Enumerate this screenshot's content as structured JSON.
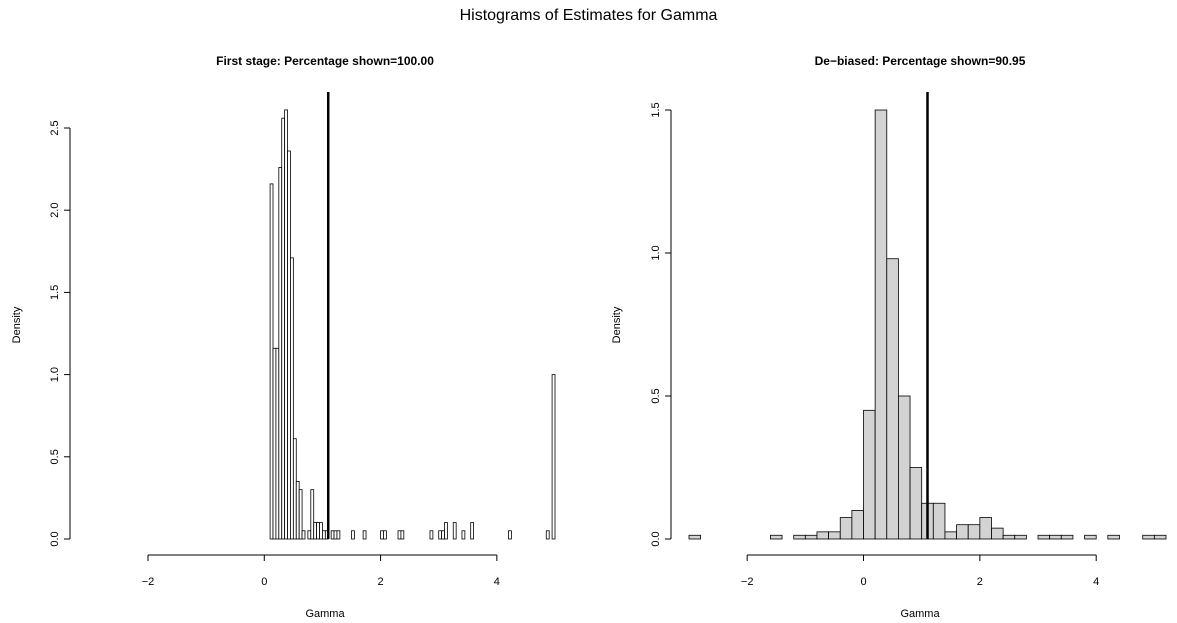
{
  "title": "Histograms of Estimates for Gamma",
  "colors": {
    "bar_left": "#ffffff",
    "bar_right": "#d3d3d3",
    "stroke": "#000000"
  },
  "chart_data": [
    {
      "type": "bar",
      "title": "First stage: Percentage shown=100.00",
      "xlabel": "Gamma",
      "ylabel": "Density",
      "xlim": [
        -2,
        5
      ],
      "ylim": [
        0,
        2.5
      ],
      "xticks": [
        -2,
        0,
        2,
        4
      ],
      "yticks": [
        0.0,
        0.5,
        1.0,
        1.5,
        2.0,
        2.5
      ],
      "vline": 1.1,
      "bin_width": 0.05,
      "bins": [
        {
          "x0": 0.1,
          "density": 2.16
        },
        {
          "x0": 0.15,
          "density": 1.16
        },
        {
          "x0": 0.2,
          "density": 1.16
        },
        {
          "x0": 0.25,
          "density": 2.26
        },
        {
          "x0": 0.3,
          "density": 2.56
        },
        {
          "x0": 0.35,
          "density": 2.61
        },
        {
          "x0": 0.4,
          "density": 2.36
        },
        {
          "x0": 0.45,
          "density": 1.71
        },
        {
          "x0": 0.5,
          "density": 0.61
        },
        {
          "x0": 0.55,
          "density": 0.35
        },
        {
          "x0": 0.6,
          "density": 0.3
        },
        {
          "x0": 0.65,
          "density": 0.05
        },
        {
          "x0": 0.75,
          "density": 0.05
        },
        {
          "x0": 0.8,
          "density": 0.3
        },
        {
          "x0": 0.85,
          "density": 0.1
        },
        {
          "x0": 0.9,
          "density": 0.1
        },
        {
          "x0": 0.95,
          "density": 0.1
        },
        {
          "x0": 1.0,
          "density": 0.05
        },
        {
          "x0": 1.05,
          "density": 0.05
        },
        {
          "x0": 1.15,
          "density": 0.05
        },
        {
          "x0": 1.2,
          "density": 0.05
        },
        {
          "x0": 1.25,
          "density": 0.05
        },
        {
          "x0": 1.5,
          "density": 0.05
        },
        {
          "x0": 1.7,
          "density": 0.05
        },
        {
          "x0": 2.0,
          "density": 0.05
        },
        {
          "x0": 2.05,
          "density": 0.05
        },
        {
          "x0": 2.3,
          "density": 0.05
        },
        {
          "x0": 2.35,
          "density": 0.05
        },
        {
          "x0": 2.85,
          "density": 0.05
        },
        {
          "x0": 3.0,
          "density": 0.05
        },
        {
          "x0": 3.05,
          "density": 0.05
        },
        {
          "x0": 3.1,
          "density": 0.1
        },
        {
          "x0": 3.25,
          "density": 0.1
        },
        {
          "x0": 3.4,
          "density": 0.05
        },
        {
          "x0": 3.55,
          "density": 0.1
        },
        {
          "x0": 4.2,
          "density": 0.05
        },
        {
          "x0": 4.85,
          "density": 0.05
        },
        {
          "x0": 4.95,
          "density": 1.0
        }
      ]
    },
    {
      "type": "bar",
      "title": "De−biased: Percentage shown=90.95",
      "xlabel": "Gamma",
      "ylabel": "Density",
      "xlim": [
        -3,
        5.2
      ],
      "ylim": [
        0,
        1.5
      ],
      "xticks": [
        -2,
        0,
        2,
        4
      ],
      "yticks": [
        0.0,
        0.5,
        1.0,
        1.5
      ],
      "vline": 1.1,
      "bin_width": 0.2,
      "bins": [
        {
          "x0": -3.0,
          "density": 0.013
        },
        {
          "x0": -1.6,
          "density": 0.013
        },
        {
          "x0": -1.2,
          "density": 0.013
        },
        {
          "x0": -1.0,
          "density": 0.013
        },
        {
          "x0": -0.8,
          "density": 0.025
        },
        {
          "x0": -0.6,
          "density": 0.025
        },
        {
          "x0": -0.4,
          "density": 0.075
        },
        {
          "x0": -0.2,
          "density": 0.1
        },
        {
          "x0": 0.0,
          "density": 0.45
        },
        {
          "x0": 0.2,
          "density": 1.5
        },
        {
          "x0": 0.4,
          "density": 0.98
        },
        {
          "x0": 0.6,
          "density": 0.5
        },
        {
          "x0": 0.8,
          "density": 0.25
        },
        {
          "x0": 1.0,
          "density": 0.125
        },
        {
          "x0": 1.2,
          "density": 0.125
        },
        {
          "x0": 1.4,
          "density": 0.025
        },
        {
          "x0": 1.6,
          "density": 0.05
        },
        {
          "x0": 1.8,
          "density": 0.05
        },
        {
          "x0": 2.0,
          "density": 0.075
        },
        {
          "x0": 2.2,
          "density": 0.038
        },
        {
          "x0": 2.4,
          "density": 0.013
        },
        {
          "x0": 2.6,
          "density": 0.013
        },
        {
          "x0": 3.0,
          "density": 0.013
        },
        {
          "x0": 3.2,
          "density": 0.013
        },
        {
          "x0": 3.4,
          "density": 0.013
        },
        {
          "x0": 3.8,
          "density": 0.013
        },
        {
          "x0": 4.2,
          "density": 0.013
        },
        {
          "x0": 4.8,
          "density": 0.013
        },
        {
          "x0": 5.0,
          "density": 0.013
        }
      ]
    }
  ]
}
